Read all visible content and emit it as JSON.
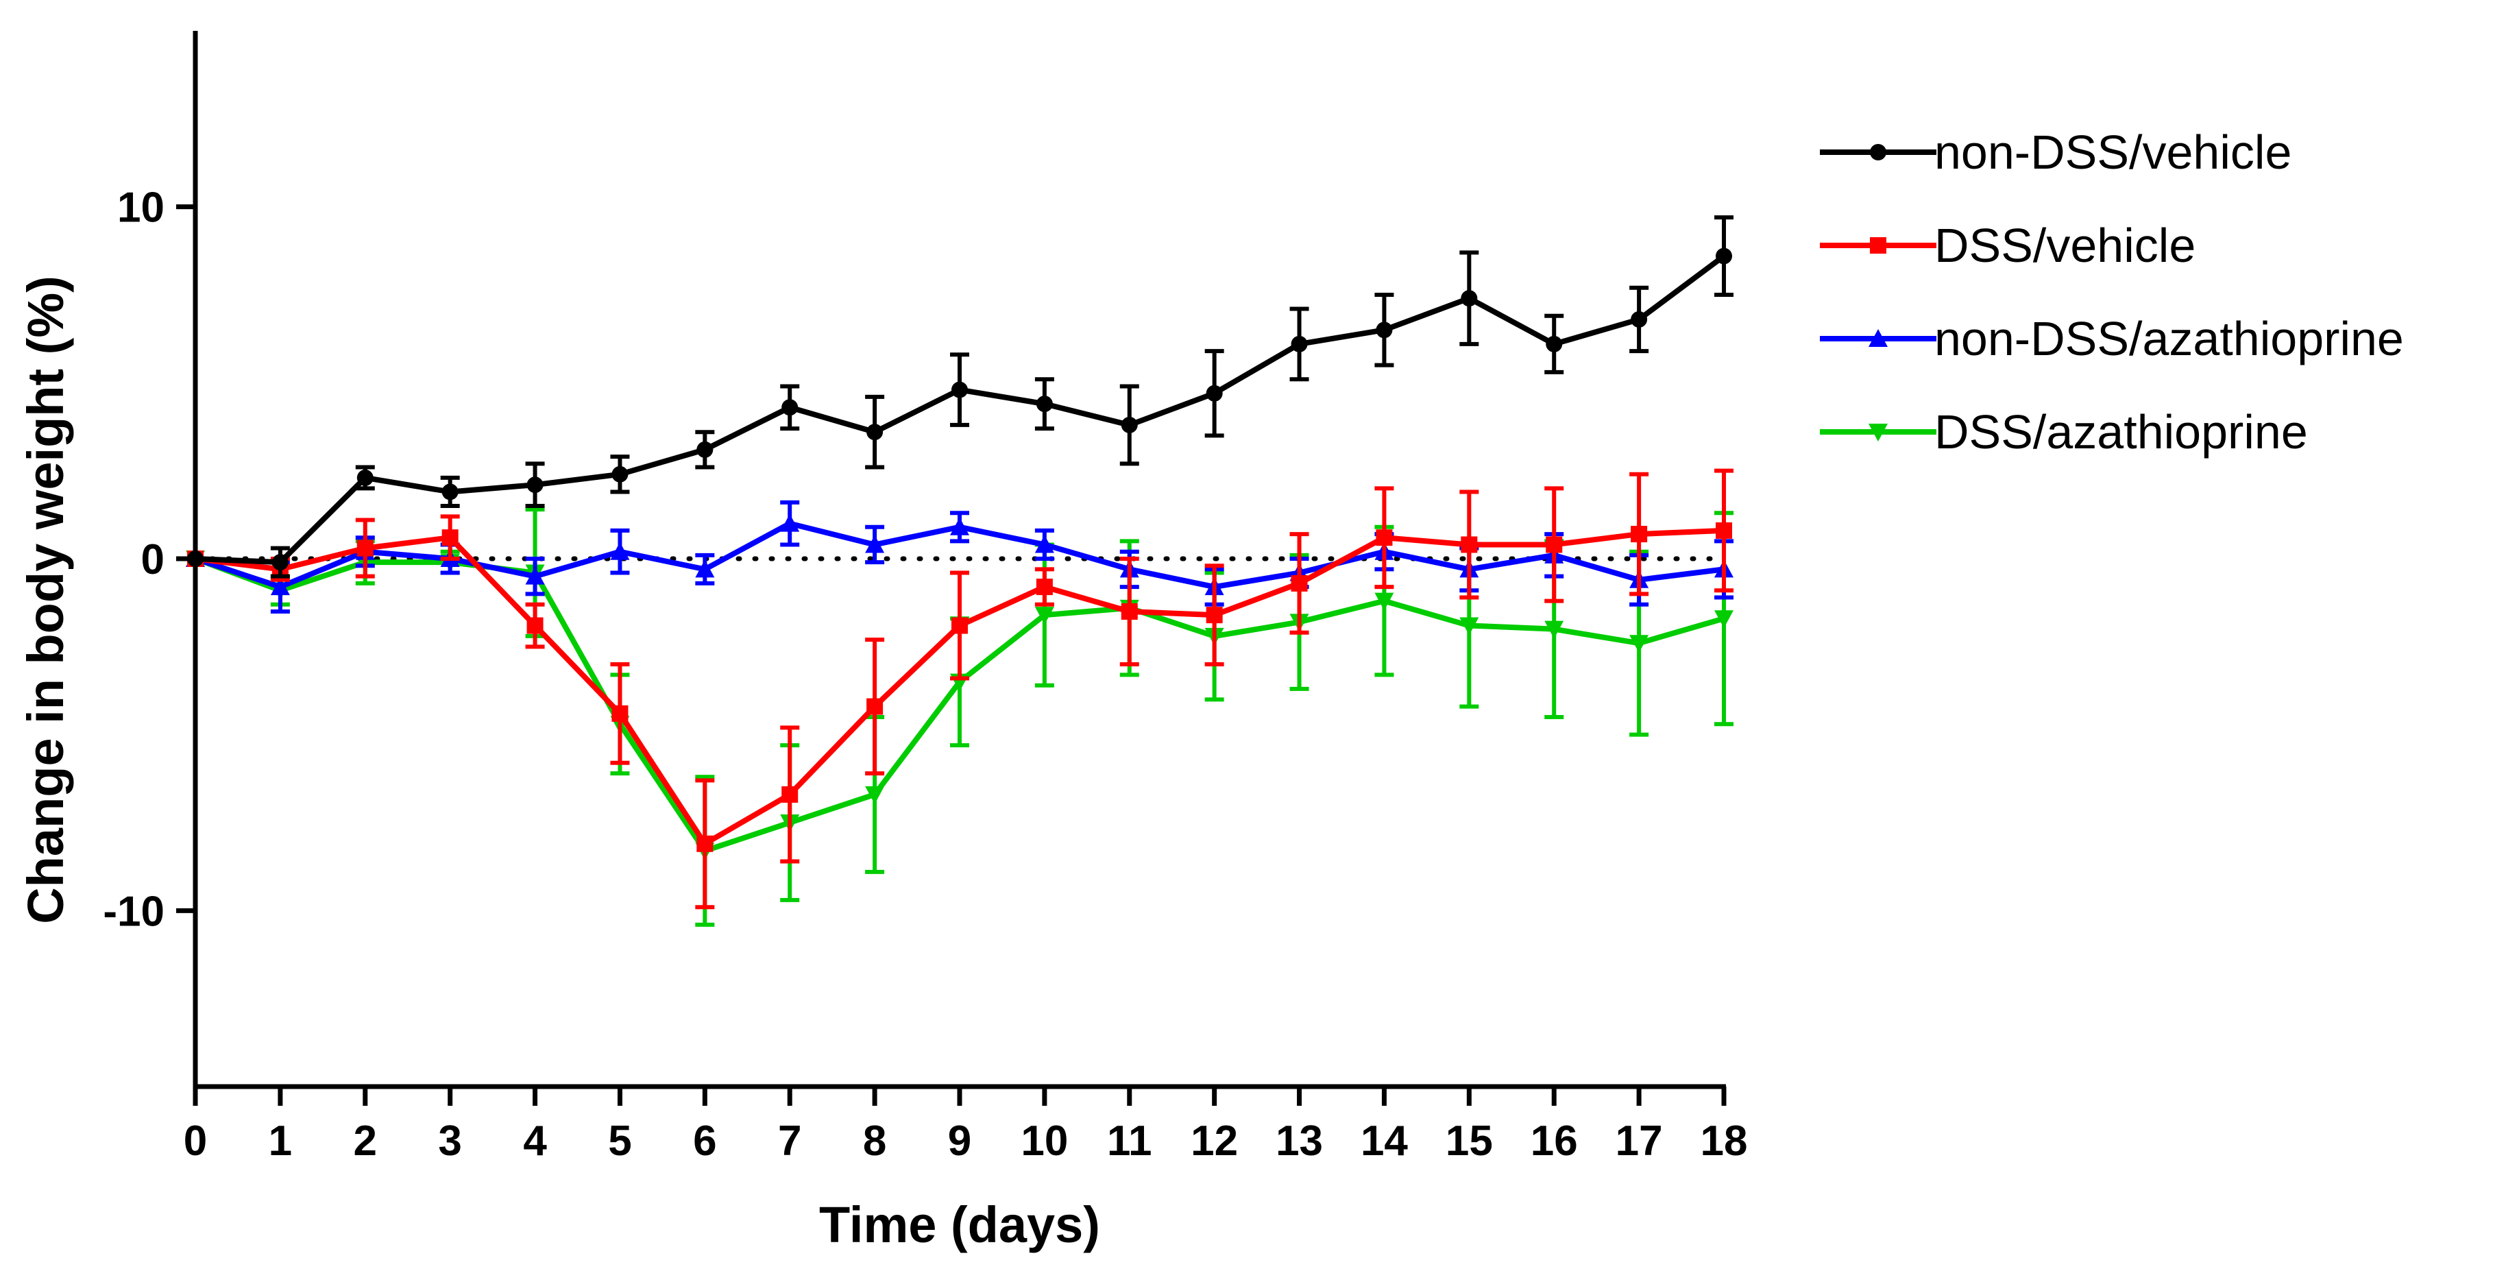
{
  "chart_data": {
    "type": "line",
    "title": "",
    "xlabel": "Time (days)",
    "ylabel": "Change in body weight (%)",
    "xlim": [
      0,
      18
    ],
    "ylim": [
      -15,
      15
    ],
    "x_ticks": [
      0,
      1,
      2,
      3,
      4,
      5,
      6,
      7,
      8,
      9,
      10,
      11,
      12,
      13,
      14,
      15,
      16,
      17,
      18
    ],
    "y_ticks": [
      10,
      0,
      -10
    ],
    "reference_line": {
      "y": 0,
      "style": "dotted"
    },
    "legend_position": "right",
    "x": [
      0,
      1,
      2,
      3,
      4,
      5,
      6,
      7,
      8,
      9,
      10,
      11,
      12,
      13,
      14,
      15,
      16,
      17,
      18
    ],
    "series": [
      {
        "name": "non-DSS/vehicle",
        "color": "#000000",
        "marker": "circle",
        "values": [
          0,
          -0.1,
          2.3,
          1.9,
          2.1,
          2.4,
          3.1,
          4.3,
          3.6,
          4.8,
          4.4,
          3.8,
          4.7,
          6.1,
          6.5,
          7.4,
          6.1,
          6.8,
          8.6
        ],
        "errors": [
          0,
          0.4,
          0.3,
          0.4,
          0.6,
          0.5,
          0.5,
          0.6,
          1.0,
          1.0,
          0.7,
          1.1,
          1.2,
          1.0,
          1.0,
          1.3,
          0.8,
          0.9,
          1.1
        ]
      },
      {
        "name": "DSS/vehicle",
        "color": "#ff0000",
        "marker": "square",
        "values": [
          0,
          -0.3,
          0.3,
          0.6,
          -1.9,
          -4.4,
          -8.1,
          -6.7,
          -4.2,
          -1.9,
          -0.8,
          -1.5,
          -1.6,
          -0.7,
          0.6,
          0.4,
          0.4,
          0.7,
          0.8
        ],
        "errors": [
          0,
          0.3,
          0.8,
          0.6,
          0.6,
          1.4,
          1.8,
          1.9,
          1.9,
          1.5,
          0.5,
          1.5,
          1.4,
          1.4,
          1.4,
          1.5,
          1.6,
          1.7,
          1.7
        ]
      },
      {
        "name": "non-DSS/azathioprine",
        "color": "#0000ff",
        "marker": "triangle-up",
        "values": [
          0,
          -0.8,
          0.2,
          0.0,
          -0.5,
          0.2,
          -0.3,
          1.0,
          0.4,
          0.9,
          0.4,
          -0.3,
          -0.8,
          -0.4,
          0.2,
          -0.3,
          0.1,
          -0.6,
          -0.3
        ],
        "errors": [
          0,
          0.7,
          0.4,
          0.4,
          0.5,
          0.6,
          0.4,
          0.6,
          0.5,
          0.4,
          0.4,
          0.5,
          0.5,
          0.4,
          0.5,
          0.6,
          0.6,
          0.7,
          0.8
        ]
      },
      {
        "name": "DSS/azathioprine",
        "color": "#00cc00",
        "marker": "triangle-down",
        "values": [
          0,
          -0.9,
          -0.1,
          -0.1,
          -0.4,
          -4.7,
          -8.3,
          -7.5,
          -6.7,
          -3.5,
          -1.6,
          -1.4,
          -2.2,
          -1.8,
          -1.2,
          -1.9,
          -2.0,
          -2.4,
          -1.7
        ],
        "errors": [
          0,
          0.4,
          0.6,
          0.3,
          1.8,
          1.4,
          2.1,
          2.2,
          2.2,
          1.8,
          2.0,
          1.9,
          1.8,
          1.9,
          2.1,
          2.3,
          2.5,
          2.6,
          3.0
        ]
      }
    ]
  }
}
